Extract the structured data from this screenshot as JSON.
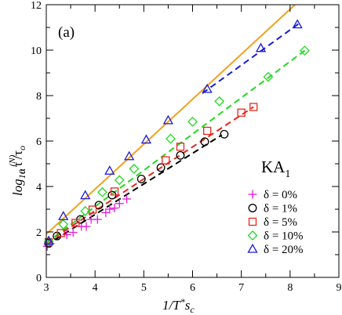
{
  "chart_data": {
    "type": "scatter",
    "panel_label": "(a)",
    "system_label": {
      "main": "KA",
      "sub": "1"
    },
    "xlabel": {
      "main": "1/T",
      "star": "*",
      "s": "s",
      "sub": "c"
    },
    "ylabel": {
      "log": "log",
      "base": "10",
      "tau": "τ",
      "alpha": "α",
      "sup": "(N)",
      "slash": "/τ",
      "sub": "o"
    },
    "xlim": [
      3,
      9
    ],
    "ylim": [
      0,
      12
    ],
    "xticks": [
      3,
      4,
      5,
      6,
      7,
      8,
      9
    ],
    "yticks": [
      0,
      2,
      4,
      6,
      8,
      10,
      12
    ],
    "xtick_labels": [
      "3",
      "4",
      "5",
      "6",
      "7",
      "8",
      "9"
    ],
    "ytick_labels": [
      "0",
      "2",
      "4",
      "6",
      "8",
      "10",
      "12"
    ],
    "legend_position": "bottom-right",
    "series": [
      {
        "name": "δ = 0%",
        "marker": "plus",
        "color": "#e61adb",
        "points": [
          [
            3.02,
            1.37
          ],
          [
            3.08,
            1.49
          ],
          [
            3.42,
            1.88
          ],
          [
            3.55,
            1.98
          ],
          [
            3.72,
            2.24
          ],
          [
            3.82,
            2.24
          ],
          [
            3.92,
            2.55
          ],
          [
            4.05,
            2.55
          ],
          [
            4.22,
            2.85
          ],
          [
            4.3,
            3.0
          ],
          [
            4.4,
            3.05
          ],
          [
            4.5,
            3.25
          ],
          [
            4.65,
            3.45
          ]
        ],
        "fit": null
      },
      {
        "name": "δ = 1%",
        "marker": "circle",
        "color": "#000000",
        "points": [
          [
            3.05,
            1.5
          ],
          [
            3.22,
            1.82
          ],
          [
            3.7,
            2.55
          ],
          [
            4.08,
            3.18
          ],
          [
            4.35,
            3.62
          ],
          [
            4.95,
            4.33
          ],
          [
            5.35,
            4.83
          ],
          [
            5.75,
            5.37
          ],
          [
            6.25,
            5.97
          ],
          [
            6.65,
            6.3
          ]
        ],
        "fit": {
          "color": "#000000",
          "dashed": true,
          "x": [
            3.0,
            6.6
          ],
          "y": [
            1.42,
            6.27
          ]
        }
      },
      {
        "name": "δ = 5%",
        "marker": "square",
        "color": "#e8261e",
        "points": [
          [
            3.05,
            1.55
          ],
          [
            3.3,
            1.95
          ],
          [
            3.6,
            2.4
          ],
          [
            3.95,
            2.98
          ],
          [
            4.4,
            3.78
          ],
          [
            5.45,
            5.15
          ],
          [
            5.75,
            5.75
          ],
          [
            6.3,
            6.45
          ],
          [
            7.0,
            7.25
          ],
          [
            7.25,
            7.5
          ]
        ],
        "fit": {
          "color": "#e8261e",
          "dashed": true,
          "x": [
            3.0,
            7.25
          ],
          "y": [
            1.52,
            7.5
          ]
        }
      },
      {
        "name": "δ = 10%",
        "marker": "diamond",
        "color": "#21d921",
        "points": [
          [
            3.05,
            1.58
          ],
          [
            3.35,
            2.33
          ],
          [
            3.8,
            2.92
          ],
          [
            4.15,
            3.75
          ],
          [
            4.5,
            4.28
          ],
          [
            4.8,
            4.78
          ],
          [
            5.55,
            6.1
          ],
          [
            6.0,
            6.85
          ],
          [
            6.55,
            7.75
          ],
          [
            7.55,
            8.82
          ],
          [
            8.3,
            9.98
          ]
        ],
        "fit": {
          "color": "#21d921",
          "dashed": true,
          "x": [
            3.0,
            8.3
          ],
          "y": [
            1.52,
            9.98
          ]
        }
      },
      {
        "name": "δ = 20%",
        "marker": "triangle",
        "color": "#1a1adb",
        "points": [
          [
            3.05,
            1.6
          ],
          [
            3.35,
            2.68
          ],
          [
            3.8,
            3.6
          ],
          [
            4.3,
            4.68
          ],
          [
            4.7,
            5.32
          ],
          [
            5.05,
            6.05
          ],
          [
            5.5,
            6.9
          ],
          [
            6.3,
            8.28
          ],
          [
            7.4,
            10.08
          ],
          [
            8.15,
            11.12
          ]
        ],
        "fit": {
          "color": "#1a1adb",
          "dashed": true,
          "x": [
            6.2,
            8.2
          ],
          "y": [
            8.1,
            11.2
          ]
        }
      }
    ],
    "reference_line": {
      "color": "#f2a11f",
      "dashed": false,
      "x": [
        3.0,
        8.1
      ],
      "y": [
        1.9,
        12.0
      ]
    }
  }
}
